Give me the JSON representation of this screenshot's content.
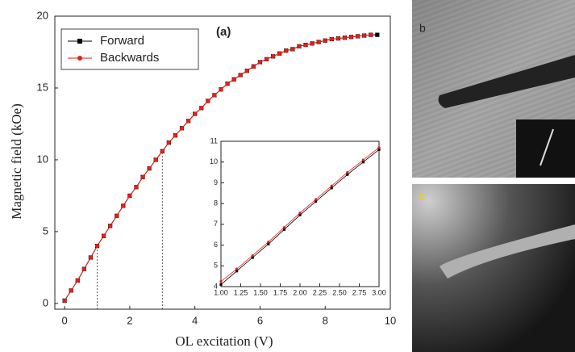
{
  "chart_data": [
    {
      "type": "line",
      "x_label": "OL excitation (V)",
      "y_label": "Magnetic field (kOe)",
      "annotation": "(a)",
      "x": [
        0,
        0.2,
        0.4,
        0.6,
        0.8,
        1.0,
        1.2,
        1.4,
        1.6,
        1.8,
        2.0,
        2.2,
        2.4,
        2.6,
        2.8,
        3.0,
        3.2,
        3.4,
        3.6,
        3.8,
        4.0,
        4.2,
        4.4,
        4.6,
        4.8,
        5.0,
        5.2,
        5.4,
        5.6,
        5.8,
        6.0,
        6.2,
        6.4,
        6.6,
        6.8,
        7.0,
        7.2,
        7.4,
        7.6,
        7.8,
        8.0,
        8.2,
        8.4,
        8.6,
        8.8,
        9.0,
        9.2,
        9.4,
        9.6
      ],
      "series": [
        {
          "name": "Forward",
          "color": "#000000",
          "marker": "square",
          "values": [
            0.2,
            0.9,
            1.6,
            2.4,
            3.2,
            4.0,
            4.7,
            5.4,
            6.1,
            6.8,
            7.5,
            8.1,
            8.8,
            9.4,
            10.0,
            10.6,
            11.2,
            11.7,
            12.2,
            12.7,
            13.2,
            13.6,
            14.1,
            14.5,
            14.9,
            15.3,
            15.6,
            15.9,
            16.2,
            16.5,
            16.8,
            17.0,
            17.2,
            17.4,
            17.6,
            17.7,
            17.9,
            18.0,
            18.1,
            18.2,
            18.3,
            18.4,
            18.45,
            18.5,
            18.55,
            18.6,
            18.65,
            18.7,
            18.7
          ]
        },
        {
          "name": "Backwards",
          "color": "#e0201a",
          "marker": "circle",
          "values": [
            0.2,
            0.9,
            1.6,
            2.4,
            3.2,
            4.0,
            4.7,
            5.4,
            6.1,
            6.8,
            7.5,
            8.1,
            8.8,
            9.4,
            10.0,
            10.6,
            11.2,
            11.7,
            12.2,
            12.7,
            13.2,
            13.6,
            14.1,
            14.5,
            14.9,
            15.3,
            15.6,
            15.9,
            16.2,
            16.5,
            16.8,
            17.0,
            17.2,
            17.4,
            17.6,
            17.7,
            17.9,
            18.0,
            18.1,
            18.2,
            18.3,
            18.4,
            18.45,
            18.5,
            18.55,
            18.6,
            18.65,
            18.7,
            null
          ]
        }
      ],
      "xlim": [
        -0.3,
        10
      ],
      "ylim": [
        -0.4,
        20
      ],
      "xticks": [
        0,
        2,
        4,
        6,
        8,
        10
      ],
      "yticks": [
        0,
        5,
        10,
        15,
        20
      ],
      "reference_lines": [
        {
          "x": 1,
          "y": 4.0
        },
        {
          "x": 3,
          "y": 10.6
        }
      ],
      "legend": "upper left",
      "grid": false
    },
    {
      "type": "line",
      "x": [
        1.0,
        1.2,
        1.4,
        1.6,
        1.8,
        2.0,
        2.2,
        2.4,
        2.6,
        2.8,
        3.0
      ],
      "series": [
        {
          "name": "Forward",
          "color": "#000000",
          "marker": "square",
          "values": [
            4.1,
            4.75,
            5.4,
            6.05,
            6.75,
            7.45,
            8.1,
            8.75,
            9.4,
            10.0,
            10.6
          ]
        },
        {
          "name": "Backwards",
          "color": "#e0201a",
          "marker": "circle",
          "values": [
            4.25,
            4.85,
            5.5,
            6.15,
            6.85,
            7.55,
            8.2,
            8.85,
            9.5,
            10.1,
            10.7
          ]
        }
      ],
      "xlim": [
        1,
        3
      ],
      "ylim": [
        4,
        11
      ],
      "xticks": [
        {
          "value": 1,
          "label": "1.00"
        },
        {
          "value": 1.25,
          "label": "1.25"
        },
        {
          "value": 1.5,
          "label": "1.50"
        },
        {
          "value": 1.75,
          "label": "1.75"
        },
        {
          "value": 2,
          "label": "2.00"
        },
        {
          "value": 2.25,
          "label": "2.25"
        },
        {
          "value": 2.5,
          "label": "2.50"
        },
        {
          "value": 2.75,
          "label": "2.75"
        },
        {
          "value": 3,
          "label": "3.00"
        }
      ],
      "yticks": [
        4,
        5,
        6,
        7,
        8,
        9,
        10,
        11
      ],
      "grid": false
    }
  ],
  "panel_labels": [
    "b",
    "c"
  ]
}
